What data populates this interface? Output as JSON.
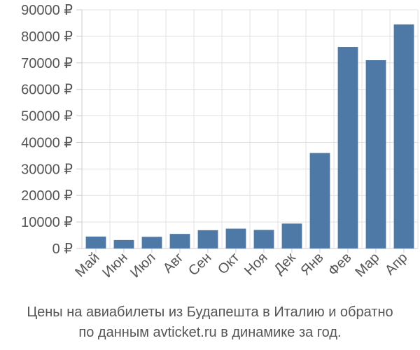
{
  "chart_data": {
    "type": "bar",
    "categories": [
      "Май",
      "Июн",
      "Июл",
      "Авг",
      "Сен",
      "Окт",
      "Ноя",
      "Дек",
      "Янв",
      "Фев",
      "Мар",
      "Апр"
    ],
    "values": [
      4500,
      3200,
      4400,
      5500,
      6900,
      7500,
      7000,
      9400,
      36000,
      76000,
      71000,
      84500
    ],
    "ylim": [
      0,
      90000
    ],
    "yticks": [
      0,
      10000,
      20000,
      30000,
      40000,
      50000,
      60000,
      70000,
      80000,
      90000
    ],
    "ytick_labels": [
      "0 ₽",
      "10000 ₽",
      "20000 ₽",
      "30000 ₽",
      "40000 ₽",
      "50000 ₽",
      "60000 ₽",
      "70000 ₽",
      "80000 ₽",
      "90000 ₽"
    ],
    "grid": true,
    "bar_color": "#4e79a7",
    "grid_color": "#e0e0e0",
    "title": "Цены на авиабилеты из Будапешта в Италию и обратно по данным avticket.ru в динамике за год."
  },
  "caption": {
    "line1": "Цены на авиабилеты из Будапешта в Италию и обратно",
    "line2": "по данным avticket.ru в динамике за год."
  }
}
